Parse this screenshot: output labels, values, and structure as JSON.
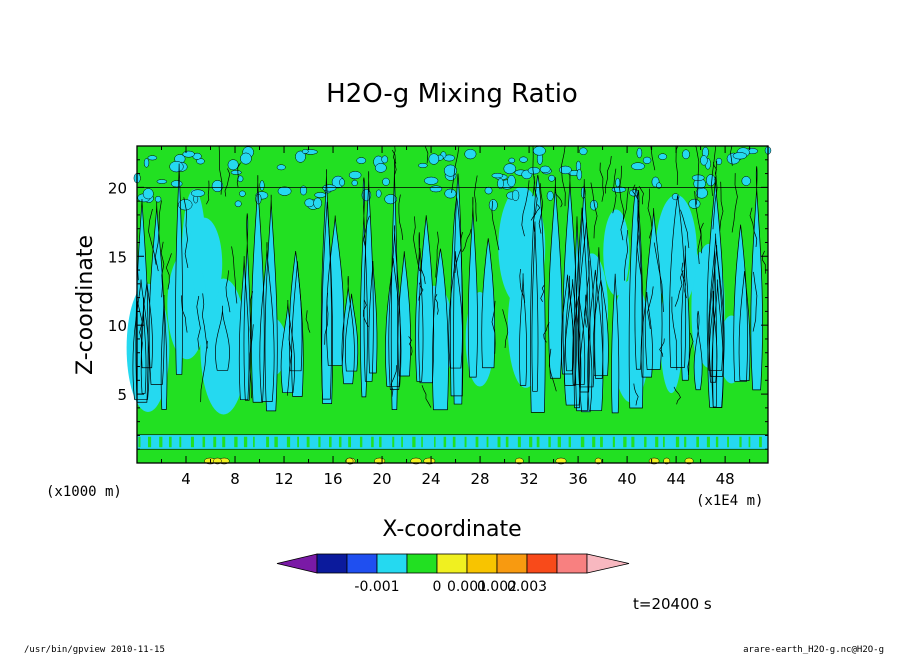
{
  "chart_data": {
    "type": "heatmap",
    "title": "H2O-g Mixing Ratio",
    "xlabel": "X-coordinate",
    "ylabel": "Z-coordinate",
    "x_unit_left": "(x1000 m)",
    "x_unit_right": "(x1E4 m)",
    "xlim": [
      0,
      51.5
    ],
    "ylim": [
      0,
      23
    ],
    "xticks": [
      4,
      8,
      12,
      16,
      20,
      24,
      28,
      32,
      36,
      40,
      44,
      48
    ],
    "yticks": [
      5,
      10,
      15,
      20
    ],
    "colorbar": {
      "levels": [
        -0.003,
        -0.002,
        -0.001,
        0,
        0.001,
        0.002,
        0.003
      ],
      "colors": [
        "#7a1aa6",
        "#0b1a9c",
        "#1f4ff0",
        "#25d9f0",
        "#22e022",
        "#f0f020",
        "#f8c400",
        "#f89a10",
        "#f84a1a",
        "#f88080",
        "#f8b8c0"
      ],
      "tick_labels": [
        "-0.001",
        "0",
        "0.001",
        "0.002",
        "0.003"
      ]
    },
    "time_label": "t=20400 s",
    "background_level": "#22e022",
    "band_level": "#25d9f0"
  },
  "footer": {
    "left": "/usr/bin/gpview  2010-11-15",
    "right": "arare-earth_H2O-g.nc@H2O-g"
  }
}
